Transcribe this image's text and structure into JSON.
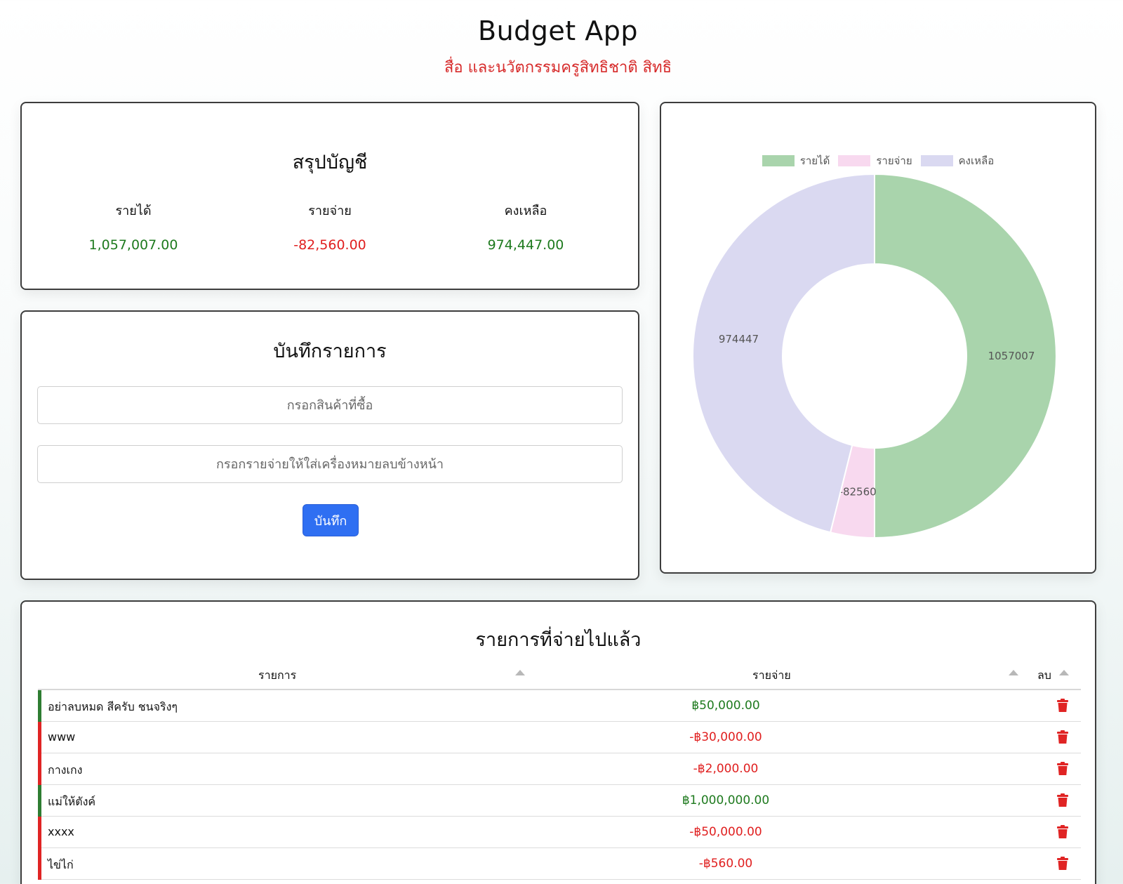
{
  "header": {
    "title": "Budget App",
    "subtitle": "สื่อ และนวัตกรรมครูสิทธิชาติ สิทธิ"
  },
  "summary": {
    "title": "สรุปบัญชี",
    "income_label": "รายได้",
    "income_value": "1,057,007.00",
    "expense_label": "รายจ่าย",
    "expense_value": "-82,560.00",
    "balance_label": "คงเหลือ",
    "balance_value": "974,447.00"
  },
  "entry": {
    "title": "บันทึกรายการ",
    "item_placeholder": "กรอกสินค้าที่ซื้อ",
    "amount_placeholder": "กรอกรายจ่ายให้ใส่เครื่องหมายลบข้างหน้า",
    "save_label": "บันทึก"
  },
  "chart_data": {
    "type": "pie",
    "categories": [
      "รายได้",
      "รายจ่าย",
      "คงเหลือ"
    ],
    "values": [
      1057007,
      -82560,
      974447
    ],
    "labels": [
      "1057007",
      "-82560",
      "974447"
    ],
    "colors": [
      "#a9d4ac",
      "#f8d9ef",
      "#dad9f1"
    ],
    "legend": "top"
  },
  "history": {
    "title": "รายการที่จ่ายไปแล้ว",
    "col_item": "รายการ",
    "col_amount": "รายจ่าย",
    "col_delete": "ลบ",
    "rows": [
      {
        "name": "อย่าลบหมด สีครับ ชนจริงๆ",
        "amount": "฿50,000.00",
        "type": "income"
      },
      {
        "name": "www",
        "amount": "-฿30,000.00",
        "type": "expense"
      },
      {
        "name": "กางเกง",
        "amount": "-฿2,000.00",
        "type": "expense"
      },
      {
        "name": "แม่ให้ตังค์",
        "amount": "฿1,000,000.00",
        "type": "income"
      },
      {
        "name": "xxxx",
        "amount": "-฿50,000.00",
        "type": "expense"
      },
      {
        "name": "ไข่ไก่",
        "amount": "-฿560.00",
        "type": "expense"
      }
    ]
  },
  "colors": {
    "income": "#1e7a1e",
    "expense": "#e01f1f",
    "income_bar": "#2e7d32",
    "expense_bar": "#e02424",
    "trash": "#e02424",
    "button": "#2f6ff2"
  },
  "icons": {
    "delete": "trash-icon",
    "sort": "sort-up-icon"
  }
}
